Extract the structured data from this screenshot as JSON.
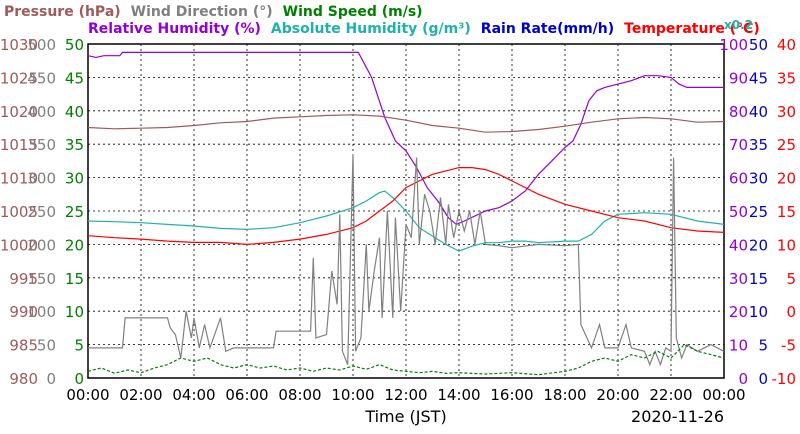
{
  "chart_data": {
    "type": "line",
    "legend": [
      {
        "text": "Pressure (hPa)",
        "color": "#a05a5a",
        "row": 1
      },
      {
        "text": "Wind Direction (°)",
        "color": "#808080",
        "row": 1
      },
      {
        "text": "Wind Speed (m/s)",
        "color": "#008000",
        "row": 1
      },
      {
        "text": "Relative Humidity (%)",
        "color": "#9400d3",
        "row": 2
      },
      {
        "text": "Absolute Humidity (g/m³)",
        "color": "#20b2aa",
        "row": 2
      },
      {
        "text": "Rain Rate(mm/h)",
        "color": "#0000cd",
        "row": 2
      },
      {
        "text": "Temperature (°C)",
        "color": "#ff0000",
        "row": 2
      }
    ],
    "scale_note": "x0.2",
    "xlabel": "Time (JST)",
    "date": "2020-11-26",
    "x_ticks": [
      "00:00",
      "02:00",
      "04:00",
      "06:00",
      "08:00",
      "10:00",
      "12:00",
      "14:00",
      "16:00",
      "18:00",
      "20:00",
      "22:00",
      "00:00"
    ],
    "xlim_hours": [
      0,
      24
    ],
    "grid": true,
    "axes": {
      "pressure": {
        "color": "#a05a5a",
        "ticks": [
          "1030",
          "1025",
          "1020",
          "1015",
          "1010",
          "1005",
          "1000",
          "995",
          "990",
          "985",
          "980"
        ],
        "range": [
          980,
          1030
        ]
      },
      "wind_dir": {
        "color": "#808080",
        "ticks": [
          "500",
          "450",
          "400",
          "350",
          "300",
          "250",
          "200",
          "150",
          "100",
          "50",
          "0"
        ],
        "range": [
          0,
          500
        ]
      },
      "wind_speed": {
        "color": "#008000",
        "ticks": [
          "50",
          "45",
          "40",
          "35",
          "30",
          "25",
          "20",
          "15",
          "10",
          "5",
          "0"
        ],
        "range": [
          0,
          50
        ]
      },
      "humidity": {
        "color": "#9400d3",
        "ticks": [
          "100",
          "90",
          "80",
          "70",
          "60",
          "50",
          "40",
          "30",
          "20",
          "10",
          "0"
        ],
        "range": [
          0,
          100
        ]
      },
      "rain": {
        "color": "#0000cd",
        "ticks": [
          "50",
          "45",
          "40",
          "35",
          "30",
          "25",
          "20",
          "15",
          "10",
          "5",
          "0"
        ],
        "range": [
          0,
          50
        ]
      },
      "temp": {
        "color": "#ff0000",
        "ticks": [
          "40",
          "35",
          "30",
          "25",
          "20",
          "15",
          "10",
          "5",
          "0",
          "-5",
          "-10"
        ],
        "range": [
          -10,
          40
        ]
      }
    },
    "series": [
      {
        "name": "Relative Humidity (%)",
        "color": "#9400d3",
        "axis": "humidity",
        "points": [
          [
            0,
            96.5
          ],
          [
            0.3,
            96.0
          ],
          [
            0.6,
            96.5
          ],
          [
            1.2,
            96.5
          ],
          [
            1.3,
            97.5
          ],
          [
            3,
            97.5
          ],
          [
            6,
            97.5
          ],
          [
            9,
            97.5
          ],
          [
            10.2,
            97.5
          ],
          [
            10.7,
            90
          ],
          [
            11.2,
            78
          ],
          [
            11.6,
            71
          ],
          [
            12,
            68
          ],
          [
            12.4,
            63
          ],
          [
            12.8,
            57
          ],
          [
            13.2,
            53
          ],
          [
            13.6,
            48
          ],
          [
            13.9,
            46
          ],
          [
            14.2,
            47
          ],
          [
            14.6,
            48.5
          ],
          [
            15,
            50
          ],
          [
            15.5,
            51
          ],
          [
            16,
            53
          ],
          [
            16.5,
            56
          ],
          [
            17,
            61
          ],
          [
            17.5,
            65
          ],
          [
            18,
            69
          ],
          [
            18.3,
            71
          ],
          [
            18.6,
            76
          ],
          [
            18.9,
            83
          ],
          [
            19.2,
            86
          ],
          [
            19.5,
            87
          ],
          [
            20,
            88
          ],
          [
            20.5,
            89
          ],
          [
            21,
            90.5
          ],
          [
            21.5,
            90.5
          ],
          [
            22,
            90
          ],
          [
            22.3,
            88
          ],
          [
            22.6,
            87
          ],
          [
            23,
            87
          ],
          [
            24,
            87
          ]
        ]
      },
      {
        "name": "Pressure (hPa)",
        "color": "#a05a5a",
        "axis": "pressure",
        "points": [
          [
            0,
            1017.5
          ],
          [
            1,
            1017.3
          ],
          [
            2,
            1017.4
          ],
          [
            3,
            1017.5
          ],
          [
            4,
            1017.8
          ],
          [
            5,
            1018.2
          ],
          [
            6,
            1018.4
          ],
          [
            7,
            1018.9
          ],
          [
            8,
            1019.1
          ],
          [
            9,
            1019.3
          ],
          [
            10,
            1019.4
          ],
          [
            11,
            1019.2
          ],
          [
            12,
            1018.6
          ],
          [
            13,
            1017.8
          ],
          [
            14,
            1017.4
          ],
          [
            15,
            1016.8
          ],
          [
            16,
            1016.9
          ],
          [
            17,
            1017.2
          ],
          [
            18,
            1017.7
          ],
          [
            19,
            1018.3
          ],
          [
            20,
            1018.8
          ],
          [
            21,
            1019.0
          ],
          [
            22,
            1018.8
          ],
          [
            23,
            1018.3
          ],
          [
            24,
            1018.4
          ]
        ]
      },
      {
        "name": "Absolute Humidity (g/m³)",
        "color": "#20b2aa",
        "axis": "humidity",
        "points": [
          [
            0,
            47
          ],
          [
            1,
            46.8
          ],
          [
            2,
            46.5
          ],
          [
            3,
            46
          ],
          [
            4,
            45.5
          ],
          [
            5,
            44.8
          ],
          [
            6,
            44.5
          ],
          [
            7,
            45
          ],
          [
            8,
            46.5
          ],
          [
            9,
            48.5
          ],
          [
            10,
            51
          ],
          [
            10.5,
            53
          ],
          [
            11,
            55.5
          ],
          [
            11.2,
            56
          ],
          [
            11.5,
            54
          ],
          [
            12,
            50
          ],
          [
            12.5,
            45
          ],
          [
            13,
            42.5
          ],
          [
            13.5,
            40
          ],
          [
            14,
            38
          ],
          [
            14.5,
            39.5
          ],
          [
            15,
            40.5
          ],
          [
            15.5,
            40.5
          ],
          [
            16,
            41
          ],
          [
            16.5,
            41
          ],
          [
            17,
            40.5
          ],
          [
            18,
            41
          ],
          [
            18.5,
            41
          ],
          [
            19,
            43
          ],
          [
            19.5,
            47
          ],
          [
            20,
            49
          ],
          [
            21,
            49.5
          ],
          [
            22,
            49
          ],
          [
            23,
            47
          ],
          [
            24,
            46
          ]
        ]
      },
      {
        "name": "Temperature (°C)",
        "color": "#ff0000",
        "axis": "temp",
        "points": [
          [
            0,
            11.3
          ],
          [
            1,
            11.0
          ],
          [
            2,
            10.8
          ],
          [
            3,
            10.5
          ],
          [
            4,
            10.3
          ],
          [
            5,
            10.3
          ],
          [
            6,
            10.0
          ],
          [
            7,
            10.3
          ],
          [
            8,
            10.8
          ],
          [
            9,
            11.5
          ],
          [
            10,
            12.5
          ],
          [
            10.5,
            13.5
          ],
          [
            11,
            15
          ],
          [
            11.5,
            16.5
          ],
          [
            12,
            18.5
          ],
          [
            12.5,
            19.5
          ],
          [
            13,
            20.5
          ],
          [
            13.5,
            21
          ],
          [
            14,
            21.5
          ],
          [
            14.5,
            21.5
          ],
          [
            15,
            21.2
          ],
          [
            15.5,
            20.5
          ],
          [
            16,
            19.5
          ],
          [
            16.5,
            18.5
          ],
          [
            17,
            17.5
          ],
          [
            18,
            16
          ],
          [
            19,
            15
          ],
          [
            20,
            14
          ],
          [
            21,
            13.5
          ],
          [
            22,
            12.5
          ],
          [
            23,
            12
          ],
          [
            24,
            11.8
          ]
        ]
      },
      {
        "name": "Wind Direction (°)",
        "color": "#808080",
        "axis": "wind_dir",
        "points": [
          [
            0,
            45
          ],
          [
            1.3,
            45
          ],
          [
            1.4,
            90
          ],
          [
            3,
            90
          ],
          [
            3.1,
            75
          ],
          [
            3.3,
            65
          ],
          [
            3.5,
            30
          ],
          [
            3.7,
            100
          ],
          [
            3.9,
            60
          ],
          [
            4,
            90
          ],
          [
            4.2,
            45
          ],
          [
            4.4,
            80
          ],
          [
            4.6,
            45
          ],
          [
            5,
            90
          ],
          [
            5.2,
            40
          ],
          [
            5.5,
            45
          ],
          [
            7,
            45
          ],
          [
            7.1,
            70
          ],
          [
            8.4,
            70
          ],
          [
            8.5,
            180
          ],
          [
            8.6,
            60
          ],
          [
            9,
            65
          ],
          [
            9.2,
            160
          ],
          [
            9.4,
            110
          ],
          [
            9.5,
            245
          ],
          [
            9.6,
            40
          ],
          [
            9.8,
            20
          ],
          [
            10,
            335
          ],
          [
            10.1,
            40
          ],
          [
            10.3,
            60
          ],
          [
            10.5,
            200
          ],
          [
            10.6,
            100
          ],
          [
            10.8,
            160
          ],
          [
            11,
            210
          ],
          [
            11.1,
            90
          ],
          [
            11.3,
            250
          ],
          [
            11.5,
            90
          ],
          [
            11.6,
            240
          ],
          [
            11.8,
            100
          ],
          [
            12,
            230
          ],
          [
            12.2,
            210
          ],
          [
            12.4,
            330
          ],
          [
            12.5,
            200
          ],
          [
            12.7,
            275
          ],
          [
            12.9,
            250
          ],
          [
            13.1,
            200
          ],
          [
            13.3,
            270
          ],
          [
            13.5,
            200
          ],
          [
            13.6,
            260
          ],
          [
            13.8,
            210
          ],
          [
            14,
            250
          ],
          [
            14.2,
            220
          ],
          [
            14.4,
            250
          ],
          [
            14.6,
            200
          ],
          [
            14.8,
            250
          ],
          [
            15,
            200
          ],
          [
            15.5,
            198
          ],
          [
            16,
            195
          ],
          [
            17,
            200
          ],
          [
            18,
            198
          ],
          [
            18.5,
            200
          ],
          [
            18.6,
            80
          ],
          [
            19,
            45
          ],
          [
            19.3,
            80
          ],
          [
            19.5,
            45
          ],
          [
            20,
            45
          ],
          [
            20.3,
            80
          ],
          [
            20.5,
            45
          ],
          [
            21,
            40
          ],
          [
            21.2,
            20
          ],
          [
            21.4,
            40
          ],
          [
            21.6,
            20
          ],
          [
            21.8,
            45
          ],
          [
            22,
            40
          ],
          [
            22.1,
            330
          ],
          [
            22.2,
            60
          ],
          [
            22.4,
            30
          ],
          [
            22.6,
            50
          ],
          [
            23,
            40
          ],
          [
            23.5,
            50
          ],
          [
            24,
            40
          ]
        ]
      },
      {
        "name": "Wind Speed (m/s)",
        "color": "#008000",
        "axis": "wind_speed",
        "points": [
          [
            0,
            1
          ],
          [
            0.5,
            1.5
          ],
          [
            1,
            0.7
          ],
          [
            1.5,
            1.2
          ],
          [
            2,
            0.8
          ],
          [
            2.5,
            1.5
          ],
          [
            3,
            2
          ],
          [
            3.5,
            3
          ],
          [
            4,
            2.5
          ],
          [
            4.5,
            3
          ],
          [
            5,
            2
          ],
          [
            5.5,
            1.5
          ],
          [
            6,
            2
          ],
          [
            6.5,
            1.5
          ],
          [
            7,
            1.8
          ],
          [
            7.5,
            1.2
          ],
          [
            8,
            1.5
          ],
          [
            8.5,
            1
          ],
          [
            9,
            1.5
          ],
          [
            9.5,
            1.2
          ],
          [
            10,
            1.8
          ],
          [
            10.5,
            1.3
          ],
          [
            11,
            2
          ],
          [
            11.5,
            1.2
          ],
          [
            12,
            1
          ],
          [
            12.5,
            0.8
          ],
          [
            13,
            1
          ],
          [
            13.5,
            0.7
          ],
          [
            14,
            0.8
          ],
          [
            15,
            0.6
          ],
          [
            16,
            0.8
          ],
          [
            17,
            0.5
          ],
          [
            18,
            1
          ],
          [
            18.5,
            1.5
          ],
          [
            19,
            2.5
          ],
          [
            19.5,
            3
          ],
          [
            20,
            2.5
          ],
          [
            20.5,
            3.5
          ],
          [
            21,
            3
          ],
          [
            21.5,
            4
          ],
          [
            22,
            3
          ],
          [
            22.5,
            5
          ],
          [
            23,
            4
          ],
          [
            23.5,
            3.5
          ],
          [
            24,
            3
          ]
        ]
      }
    ]
  }
}
